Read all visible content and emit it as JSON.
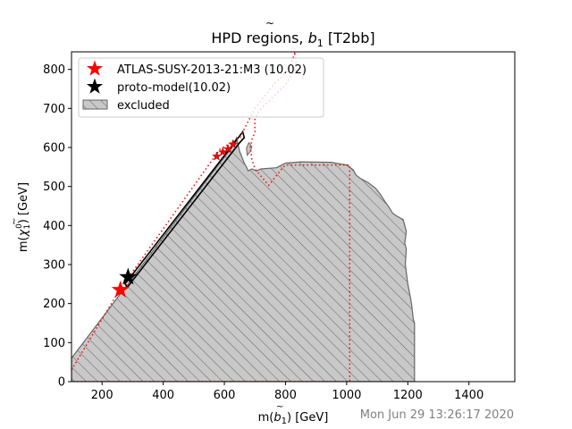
{
  "chart_data": {
    "type": "scatter",
    "title": "HPD regions, b̃₁ [T2bb]",
    "title_parts": {
      "prefix": "HPD regions, ",
      "symbol": "b",
      "subscript": "1",
      "suffix": " [T2bb]"
    },
    "xlabel": "m(b̃₁) [GeV]",
    "xlabel_parts": {
      "prefix": "m(",
      "symbol": "b",
      "subscript": "1",
      "suffix": ") [GeV]"
    },
    "ylabel": "m(χ̃₁⁰) [GeV]",
    "ylabel_parts": {
      "prefix": "m(",
      "symbol": "χ",
      "subscript": "1",
      "superscript": "0",
      "suffix": ") [GeV]"
    },
    "xlim": [
      100,
      1550
    ],
    "ylim": [
      0,
      845
    ],
    "xticks": [
      200,
      400,
      600,
      800,
      1000,
      1200,
      1400
    ],
    "yticks": [
      0,
      100,
      200,
      300,
      400,
      500,
      600,
      700,
      800
    ],
    "grid": false,
    "legend_position": "top-left",
    "legend": [
      {
        "label": "ATLAS-SUSY-2013-21:M3 (10.02)",
        "marker": "star",
        "color": "#ff0000"
      },
      {
        "label": "proto-model(10.02)",
        "marker": "star",
        "color": "#000000"
      },
      {
        "label": "excluded",
        "marker": "hatched-patch",
        "color": "#c8c8c8"
      }
    ],
    "series": [
      {
        "name": "ATLAS-SUSY-2013-21:M3 (10.02)",
        "points": [
          [
            260,
            235
          ]
        ],
        "color": "#ff0000"
      },
      {
        "name": "proto-model(10.02)",
        "points": [
          [
            285,
            268
          ]
        ],
        "color": "#000000"
      }
    ],
    "excluded_region": [
      [
        100,
        0
      ],
      [
        1222,
        0
      ],
      [
        1222,
        150
      ],
      [
        1218,
        160
      ],
      [
        1213,
        195
      ],
      [
        1210,
        210
      ],
      [
        1200,
        250
      ],
      [
        1192,
        300
      ],
      [
        1195,
        340
      ],
      [
        1190,
        355
      ],
      [
        1195,
        385
      ],
      [
        1190,
        400
      ],
      [
        1185,
        415
      ],
      [
        1162,
        425
      ],
      [
        1150,
        432
      ],
      [
        1140,
        445
      ],
      [
        1125,
        462
      ],
      [
        1110,
        480
      ],
      [
        1095,
        495
      ],
      [
        1070,
        510
      ],
      [
        1042,
        522
      ],
      [
        1030,
        530
      ],
      [
        1022,
        542
      ],
      [
        1000,
        555
      ],
      [
        950,
        562
      ],
      [
        850,
        563
      ],
      [
        800,
        560
      ],
      [
        770,
        548
      ],
      [
        720,
        545
      ],
      [
        705,
        540
      ],
      [
        690,
        545
      ],
      [
        678,
        540
      ],
      [
        672,
        550
      ],
      [
        665,
        560
      ],
      [
        660,
        570
      ],
      [
        650,
        590
      ],
      [
        640,
        625
      ],
      [
        625,
        600
      ],
      [
        570,
        545
      ],
      [
        100,
        60
      ]
    ],
    "excluded_island": [
      [
        675,
        580
      ],
      [
        685,
        590
      ],
      [
        690,
        602
      ],
      [
        680,
        612
      ],
      [
        672,
        598
      ]
    ],
    "hpd_diagonal_band": [
      [
        275,
        250
      ],
      [
        660,
        640
      ],
      [
        665,
        625
      ],
      [
        650,
        612
      ],
      [
        283,
        242
      ]
    ],
    "atlas_dotted_contour": [
      [
        100,
        30
      ],
      [
        255,
        232
      ],
      [
        585,
        595
      ],
      [
        650,
        625
      ],
      [
        660,
        640
      ],
      [
        700,
        700
      ],
      [
        760,
        760
      ],
      [
        810,
        800
      ],
      [
        830,
        840
      ],
      [
        835,
        820
      ],
      [
        832,
        800
      ],
      [
        800,
        760
      ],
      [
        760,
        730
      ],
      [
        720,
        700
      ],
      [
        700,
        675
      ],
      [
        700,
        640
      ],
      [
        690,
        620
      ],
      [
        685,
        600
      ],
      [
        690,
        570
      ],
      [
        700,
        545
      ],
      [
        745,
        503
      ],
      [
        790,
        547
      ],
      [
        800,
        555
      ],
      [
        965,
        555
      ],
      [
        1010,
        555
      ],
      [
        1010,
        0
      ],
      [
        100,
        0
      ]
    ],
    "red_markers_cluster": [
      [
        575,
        577
      ],
      [
        595,
        588
      ],
      [
        612,
        596
      ],
      [
        628,
        608
      ]
    ],
    "timestamp": "Mon Jun 29 13:26:17 2020"
  }
}
